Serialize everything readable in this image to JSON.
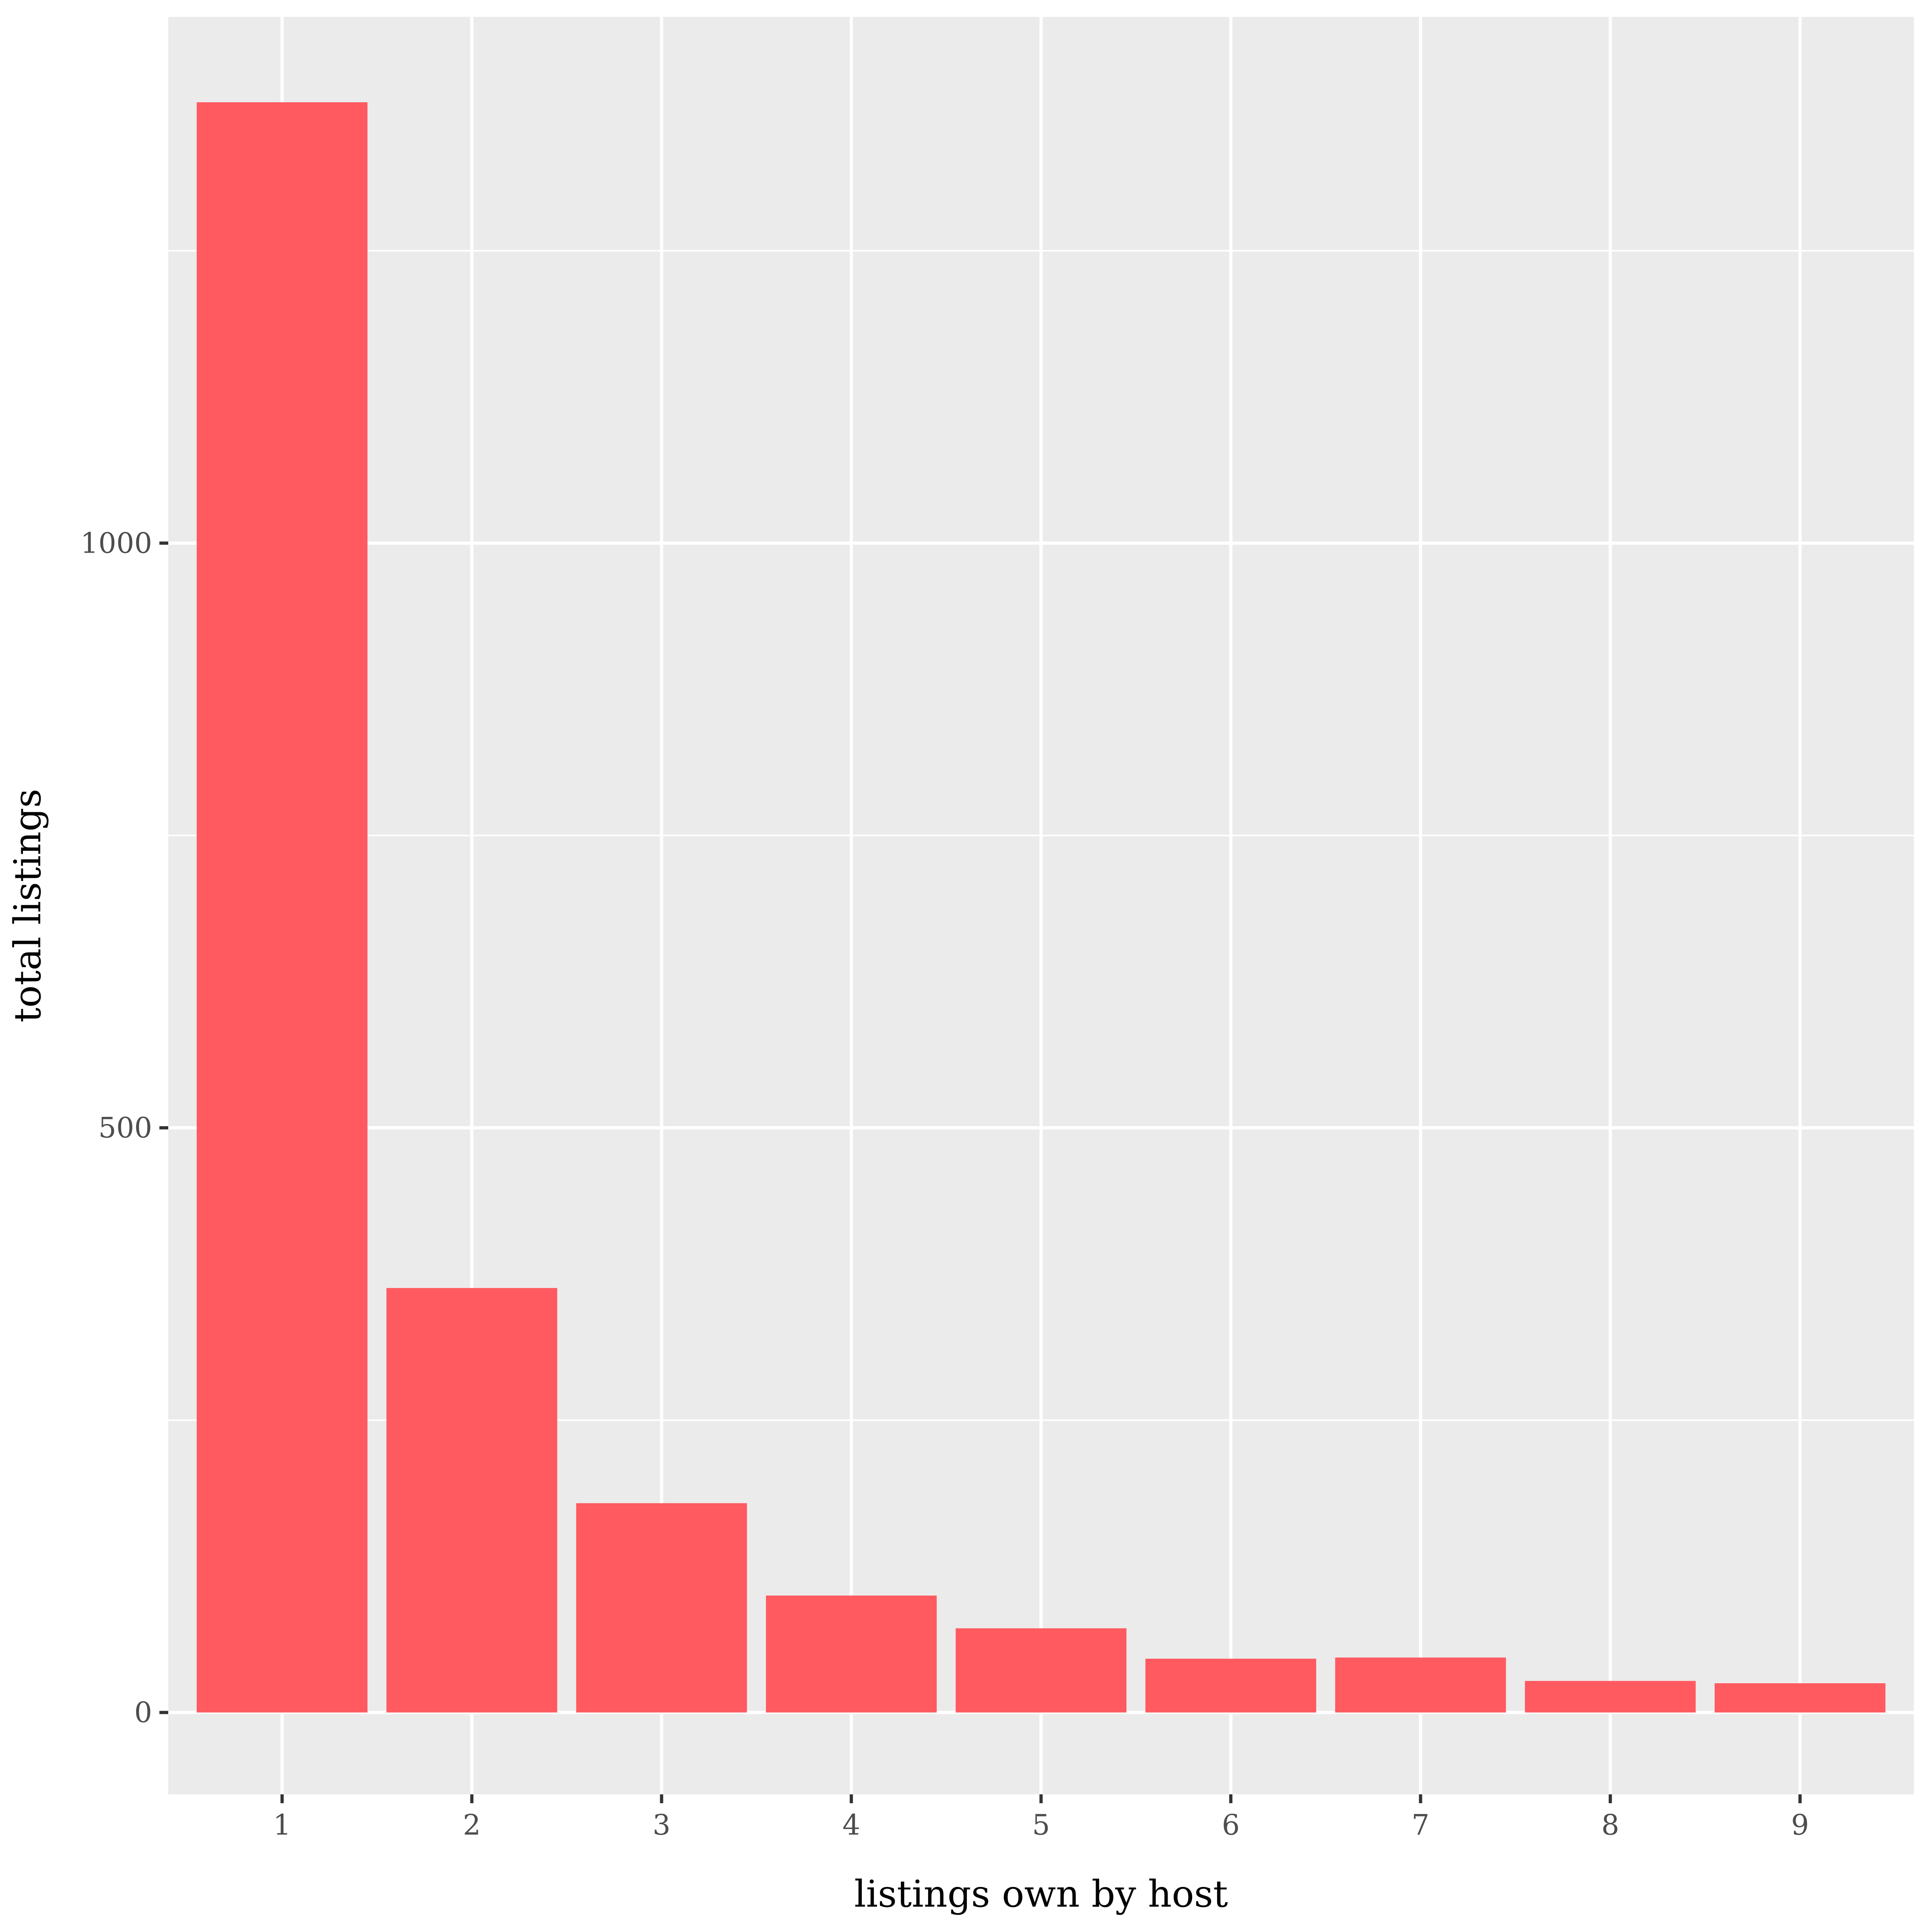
{
  "chart_data": {
    "type": "bar",
    "categories": [
      "1",
      "2",
      "3",
      "4",
      "5",
      "6",
      "7",
      "8",
      "9"
    ],
    "values": [
      1377,
      363,
      179,
      100,
      72,
      46,
      47,
      27,
      25
    ],
    "xlabel": "listings own by host",
    "ylabel": "total listings",
    "ylim": [
      -70,
      1450
    ],
    "yticks": [
      0,
      500,
      1000
    ],
    "grid": true,
    "legend": "none",
    "colors": {
      "bar": "#ff5a60",
      "panel": "#ebebeb",
      "grid_major": "#ffffff",
      "grid_minor": "#ffffff",
      "tick_text": "#4d4d4d",
      "tick_mark": "#333333",
      "title_text": "#000000"
    }
  }
}
